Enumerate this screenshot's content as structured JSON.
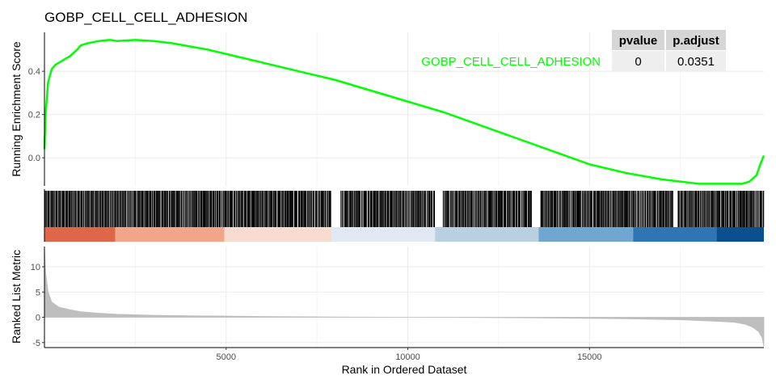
{
  "chart_data": {
    "type": "line",
    "title": "GOBP_CELL_CELL_ADHESION",
    "xlabel": "Rank in Ordered Dataset",
    "xlim": [
      0,
      19800
    ],
    "x_ticks": [
      "5000",
      "10000",
      "15000"
    ],
    "x_tick_values": [
      5000,
      10000,
      15000
    ],
    "grid": true,
    "series": [
      {
        "name": "GOBP_CELL_CELL_ADHESION",
        "color": "#00ff00",
        "panel": "running-enrichment",
        "ylabel": "Running Enrichment Score",
        "ylim": [
          -0.13,
          0.58
        ],
        "y_ticks": [
          "0.0",
          "0.2",
          "0.4"
        ],
        "y_tick_values": [
          0.0,
          0.2,
          0.4
        ],
        "x": [
          0,
          30,
          100,
          200,
          300,
          500,
          700,
          900,
          1000,
          1200,
          1500,
          1800,
          2000,
          2500,
          3000,
          3500,
          4000,
          4500,
          5000,
          6000,
          7000,
          8000,
          9000,
          10000,
          11000,
          12000,
          13000,
          14000,
          15000,
          16000,
          17000,
          17500,
          18000,
          18500,
          19000,
          19200,
          19400,
          19600,
          19700,
          19800
        ],
        "y": [
          0.04,
          0.2,
          0.35,
          0.41,
          0.43,
          0.45,
          0.47,
          0.5,
          0.52,
          0.53,
          0.54,
          0.545,
          0.54,
          0.545,
          0.54,
          0.53,
          0.515,
          0.5,
          0.48,
          0.44,
          0.4,
          0.36,
          0.31,
          0.26,
          0.21,
          0.15,
          0.09,
          0.03,
          -0.03,
          -0.07,
          -0.1,
          -0.11,
          -0.12,
          -0.12,
          -0.12,
          -0.12,
          -0.11,
          -0.08,
          -0.03,
          0.01
        ]
      },
      {
        "name": "",
        "color": "#bebebe",
        "panel": "ranked-list-metric",
        "ylabel": "Ranked List Metric",
        "ylim": [
          -6,
          14
        ],
        "y_ticks": [
          "-5",
          "0",
          "5",
          "10"
        ],
        "y_tick_values": [
          -5,
          0,
          5,
          10
        ],
        "x": [
          0,
          30,
          100,
          200,
          400,
          700,
          1000,
          1500,
          2000,
          3000,
          4000,
          6000,
          8000,
          10000,
          12000,
          14000,
          16000,
          17500,
          18500,
          19000,
          19300,
          19500,
          19650,
          19750,
          19800
        ],
        "y": [
          14,
          9,
          5,
          3,
          2,
          1.5,
          1.1,
          0.8,
          0.6,
          0.4,
          0.3,
          0.15,
          0.05,
          0,
          -0.05,
          -0.15,
          -0.3,
          -0.5,
          -0.8,
          -1,
          -1.4,
          -2,
          -2.8,
          -4,
          -5.8
        ]
      }
    ],
    "gene_hits": {
      "min": 0,
      "max": 19800,
      "count": 900,
      "gaps": [
        [
          7890,
          8150
        ],
        [
          10750,
          10950
        ],
        [
          13420,
          13660
        ],
        [
          17300,
          17420
        ]
      ]
    },
    "rank_gradient": {
      "segments": [
        {
          "x0": 0,
          "x1": 1950,
          "color": "#e0664a"
        },
        {
          "x0": 1950,
          "x1": 4950,
          "color": "#f3a58a"
        },
        {
          "x0": 4950,
          "x1": 7900,
          "color": "#f7dccf"
        },
        {
          "x0": 7900,
          "x1": 10750,
          "color": "#e2e8f3"
        },
        {
          "x0": 10750,
          "x1": 13600,
          "color": "#b9d0e1"
        },
        {
          "x0": 13600,
          "x1": 16200,
          "color": "#6fa7d0"
        },
        {
          "x0": 16200,
          "x1": 18500,
          "color": "#2f74b3"
        },
        {
          "x0": 18500,
          "x1": 19800,
          "color": "#0b4f90"
        }
      ]
    },
    "table": {
      "headers": [
        "pvalue",
        "p.adjust"
      ],
      "rows": [
        {
          "label": "GOBP_CELL_CELL_ADHESION",
          "cells": [
            "0",
            "0.0351"
          ]
        }
      ]
    }
  }
}
